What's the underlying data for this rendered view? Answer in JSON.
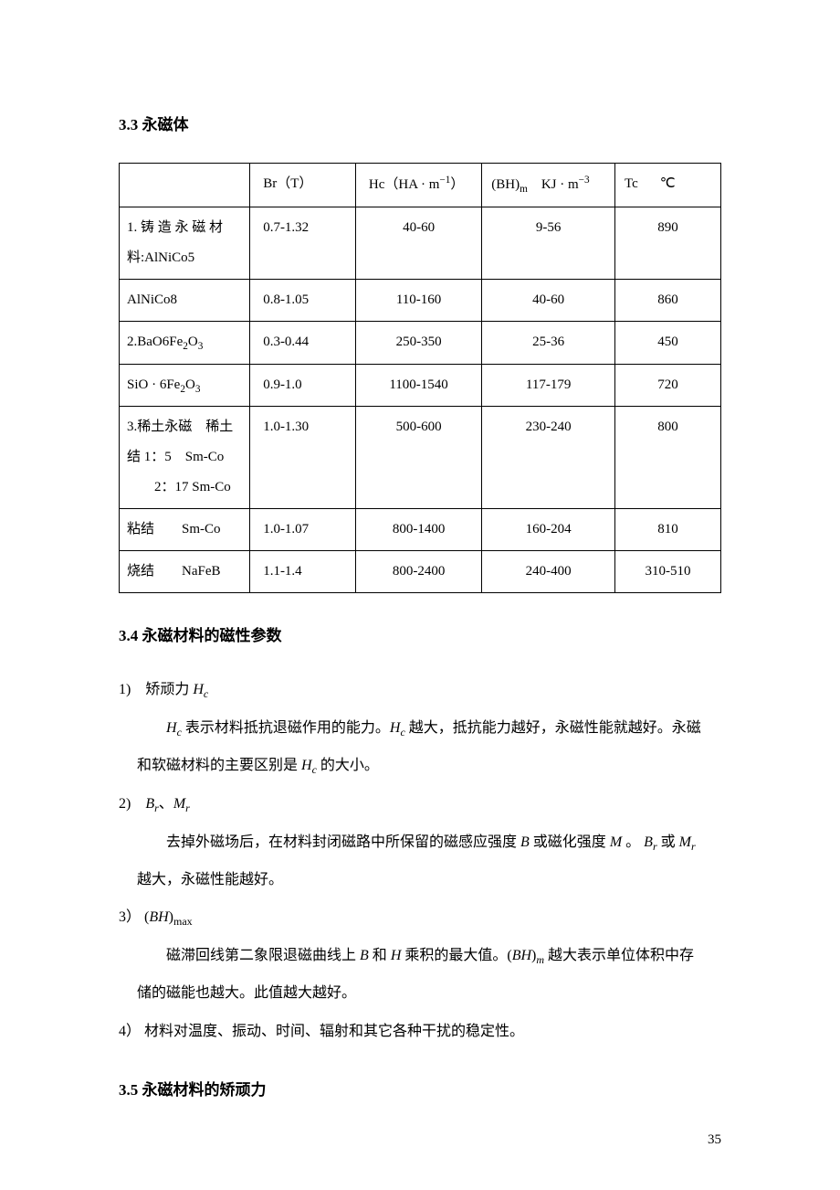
{
  "sections": {
    "s33_title": "3.3 永磁体",
    "s34_title": "3.4 永磁材料的磁性参数",
    "s35_title": "3.5 永磁材料的矫顽力"
  },
  "table": {
    "headers": {
      "col1": "",
      "col2": "Br（T）",
      "col3_pre": "Hc（HA · m",
      "col3_sup": "−1",
      "col3_post": "）",
      "col4_pre": "(BH)",
      "col4_sub": "m",
      "col4_mid": "　KJ · m",
      "col4_sup": "−3",
      "col5_pre": "Tc",
      "col5_unit": "℃"
    },
    "rows": [
      {
        "c1_html": "1. 铸 造 永 磁 材料:AlNiCo5",
        "c2": "0.7-1.32",
        "c3": "40-60",
        "c4": "9-56",
        "c5": "890"
      },
      {
        "c1_html": "AlNiCo8",
        "c2": "0.8-1.05",
        "c3": "110-160",
        "c4": "40-60",
        "c5": "860"
      },
      {
        "c1_html": "2.BaO6Fe<span class=\"sub\">2</span>O<span class=\"sub\">3</span>",
        "c2": "0.3-0.44",
        "c3": "250-350",
        "c4": "25-36",
        "c5": "450"
      },
      {
        "c1_html": "SiO · 6Fe<span class=\"sub\">2</span>O<span class=\"sub\">3</span>",
        "c2": "0.9-1.0",
        "c3": "1100-1540",
        "c4": "117-179",
        "c5": "720"
      },
      {
        "c1_html": "3.稀土永磁　稀土结 1：5　Sm-Co<br>　　2：17 Sm-Co",
        "c2": "1.0-1.30",
        "c3": "500-600",
        "c4": "230-240",
        "c5": "800"
      },
      {
        "c1_html": "粘结　　Sm-Co",
        "c2": "1.0-1.07",
        "c3": "800-1400",
        "c4": "160-204",
        "c5": "810"
      },
      {
        "c1_html": "烧结　　NaFeB",
        "c2": "1.1-1.4",
        "c3": "800-2400",
        "c4": "240-400",
        "c5": "310-510"
      }
    ]
  },
  "body": {
    "item1_label": "1)　矫顽力 ",
    "item1_sym": "H",
    "item1_sub": "c",
    "item1_p1_a": "H",
    "item1_p1_asub": "c",
    "item1_p1_b": " 表示材料抵抗退磁作用的能力。",
    "item1_p1_c": "H",
    "item1_p1_csub": "c",
    "item1_p1_d": " 越大，抵抗能力越好，永磁性能就越好。永磁",
    "item1_p2_a": "和软磁材料的主要区别是 ",
    "item1_p2_b": "H",
    "item1_p2_bsub": "c",
    "item1_p2_c": " 的大小。",
    "item2_label": "2)　",
    "item2_sym1": "B",
    "item2_sub1": "r",
    "item2_sep": "、",
    "item2_sym2": "M",
    "item2_sub2": "r",
    "item2_p1_a": "去掉外磁场后，在材料封闭磁路中所保留的磁感应强度 ",
    "item2_p1_b": "B",
    "item2_p1_c": " 或磁化强度 ",
    "item2_p1_d": "M",
    "item2_p1_e": " 。 ",
    "item2_p1_f": "B",
    "item2_p1_fsub": "r",
    "item2_p1_g": " 或 ",
    "item2_p1_h": "M",
    "item2_p1_hsub": "r",
    "item2_p2": "越大，永磁性能越好。",
    "item3_label": "3）  (",
    "item3_sym": "BH",
    "item3_close": ")",
    "item3_sub": "max",
    "item3_p1_a": "磁滞回线第二象限退磁曲线上 ",
    "item3_p1_b": "B",
    "item3_p1_c": " 和 ",
    "item3_p1_d": "H",
    "item3_p1_e": " 乘积的最大值。(",
    "item3_p1_f": "BH",
    "item3_p1_g": ")",
    "item3_p1_gsub": "m",
    "item3_p1_h": " 越大表示单位体积中存",
    "item3_p2": "储的磁能也越大。此值越大越好。",
    "item4": "4）  材料对温度、振动、时间、辐射和其它各种干扰的稳定性。"
  },
  "page_number": "35",
  "style": {
    "background": "#ffffff",
    "text_color": "#000000",
    "border_color": "#000000",
    "body_fontsize": 16,
    "table_fontsize": 15
  }
}
